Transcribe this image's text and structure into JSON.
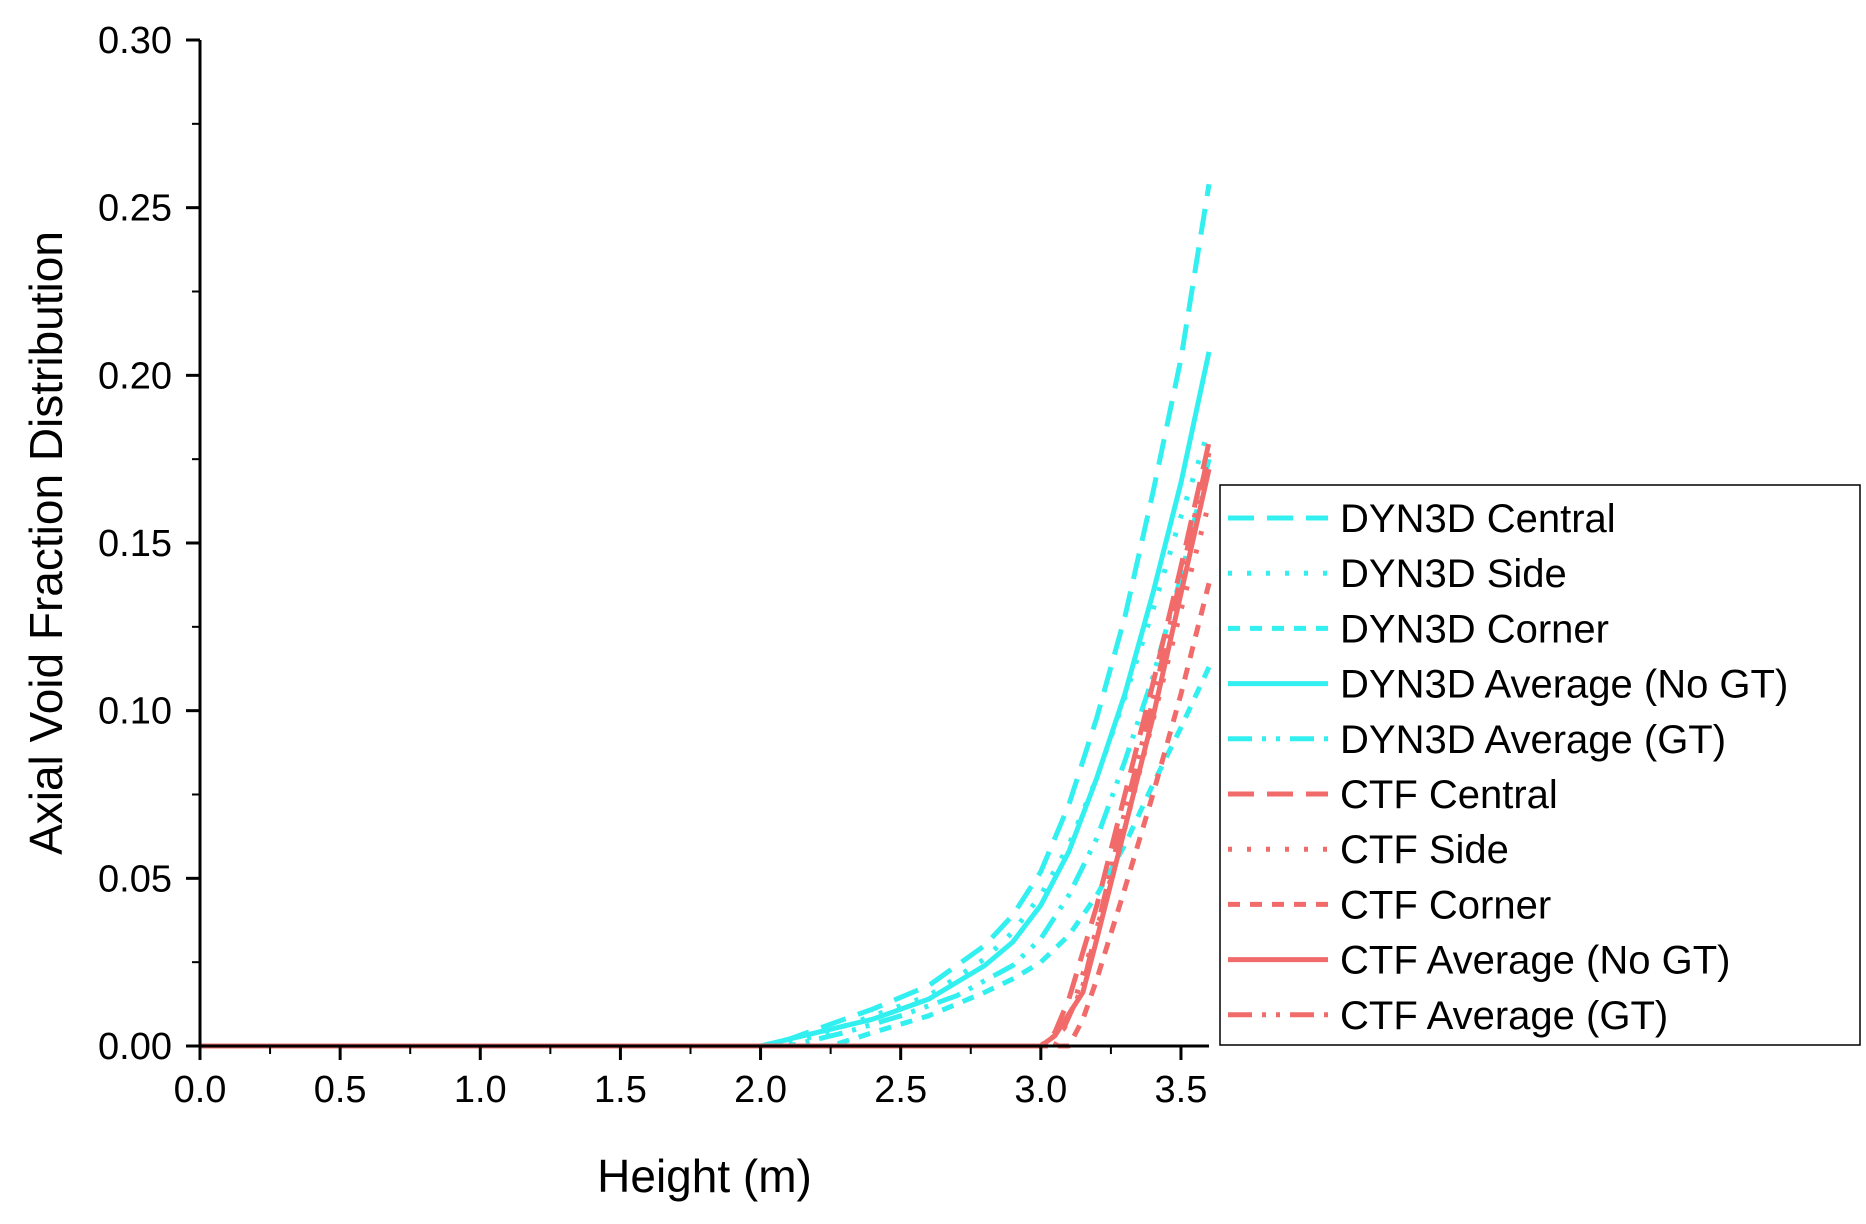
{
  "chart_data": {
    "type": "line",
    "xlabel": "Height (m)",
    "ylabel": "Axial Void Fraction Distribution",
    "xlim": [
      0,
      3.6
    ],
    "ylim": [
      0,
      0.3
    ],
    "x_ticks": [
      0.0,
      0.5,
      1.0,
      1.5,
      2.0,
      2.5,
      3.0,
      3.5
    ],
    "x_tick_labels": [
      "0.0",
      "0.5",
      "1.0",
      "1.5",
      "2.0",
      "2.5",
      "3.0",
      "3.5"
    ],
    "y_ticks": [
      0.0,
      0.05,
      0.1,
      0.15,
      0.2,
      0.25,
      0.3
    ],
    "y_tick_labels": [
      "0.00",
      "0.05",
      "0.10",
      "0.15",
      "0.20",
      "0.25",
      "0.30"
    ],
    "grid": false,
    "legend_position": "right",
    "colors": {
      "dyn3d": "#33f0f0",
      "ctf": "#f26b6b"
    },
    "series": [
      {
        "name": "DYN3D Central",
        "style": "dash",
        "color": "#33f0f0",
        "x": [
          0,
          2.0,
          2.1,
          2.2,
          2.4,
          2.6,
          2.8,
          2.9,
          3.0,
          3.1,
          3.2,
          3.3,
          3.4,
          3.5,
          3.6
        ],
        "y": [
          0,
          0,
          0.002,
          0.005,
          0.011,
          0.018,
          0.03,
          0.039,
          0.052,
          0.072,
          0.098,
          0.128,
          0.165,
          0.205,
          0.257
        ]
      },
      {
        "name": "DYN3D Side",
        "style": "dot",
        "color": "#33f0f0",
        "x": [
          0,
          2.05,
          2.2,
          2.4,
          2.6,
          2.8,
          2.9,
          3.0,
          3.1,
          3.2,
          3.3,
          3.4,
          3.5,
          3.6
        ],
        "y": [
          0,
          0,
          0.003,
          0.009,
          0.015,
          0.026,
          0.034,
          0.045,
          0.06,
          0.08,
          0.104,
          0.13,
          0.158,
          0.184
        ]
      },
      {
        "name": "DYN3D Corner",
        "style": "shortdash",
        "color": "#33f0f0",
        "x": [
          0,
          2.25,
          2.4,
          2.6,
          2.8,
          2.9,
          3.0,
          3.1,
          3.2,
          3.3,
          3.4,
          3.5,
          3.6
        ],
        "y": [
          0,
          0,
          0.004,
          0.009,
          0.016,
          0.02,
          0.025,
          0.033,
          0.045,
          0.06,
          0.078,
          0.095,
          0.113
        ]
      },
      {
        "name": "DYN3D Average (No GT)",
        "style": "solid",
        "color": "#33f0f0",
        "x": [
          0,
          2.0,
          2.2,
          2.4,
          2.6,
          2.8,
          2.9,
          3.0,
          3.1,
          3.2,
          3.3,
          3.4,
          3.5,
          3.6
        ],
        "y": [
          0,
          0,
          0.004,
          0.008,
          0.014,
          0.024,
          0.031,
          0.042,
          0.058,
          0.08,
          0.105,
          0.135,
          0.168,
          0.207
        ]
      },
      {
        "name": "DYN3D Average (GT)",
        "style": "dashdotdot",
        "color": "#33f0f0",
        "x": [
          0,
          2.1,
          2.3,
          2.5,
          2.7,
          2.9,
          3.0,
          3.1,
          3.2,
          3.3,
          3.4,
          3.5,
          3.6
        ],
        "y": [
          0,
          0,
          0.004,
          0.009,
          0.015,
          0.024,
          0.032,
          0.045,
          0.062,
          0.085,
          0.11,
          0.14,
          0.175
        ]
      },
      {
        "name": "CTF Central",
        "style": "dash",
        "color": "#f26b6b",
        "x": [
          0,
          3.0,
          3.05,
          3.1,
          3.2,
          3.3,
          3.4,
          3.5,
          3.6
        ],
        "y": [
          0,
          0,
          0.004,
          0.014,
          0.042,
          0.075,
          0.108,
          0.143,
          0.18
        ]
      },
      {
        "name": "CTF Side",
        "style": "dot",
        "color": "#f26b6b",
        "x": [
          0,
          3.05,
          3.1,
          3.2,
          3.3,
          3.4,
          3.5,
          3.6
        ],
        "y": [
          0,
          0,
          0.008,
          0.035,
          0.065,
          0.097,
          0.13,
          0.162
        ]
      },
      {
        "name": "CTF Corner",
        "style": "shortdash",
        "color": "#f26b6b",
        "x": [
          0,
          3.1,
          3.15,
          3.2,
          3.3,
          3.4,
          3.5,
          3.6
        ],
        "y": [
          0,
          0,
          0.008,
          0.02,
          0.047,
          0.075,
          0.105,
          0.138
        ]
      },
      {
        "name": "CTF Average (No GT)",
        "style": "solid",
        "color": "#f26b6b",
        "x": [
          0,
          3.0,
          3.05,
          3.15,
          3.2,
          3.3,
          3.4,
          3.5,
          3.6
        ],
        "y": [
          0,
          0,
          0.003,
          0.016,
          0.032,
          0.065,
          0.098,
          0.135,
          0.172
        ]
      },
      {
        "name": "CTF Average (GT)",
        "style": "dashdotdot",
        "color": "#f26b6b",
        "x": [
          0,
          3.0,
          3.08,
          3.15,
          3.2,
          3.3,
          3.4,
          3.5,
          3.6
        ],
        "y": [
          0,
          0,
          0.005,
          0.018,
          0.035,
          0.07,
          0.103,
          0.14,
          0.177
        ]
      }
    ]
  }
}
